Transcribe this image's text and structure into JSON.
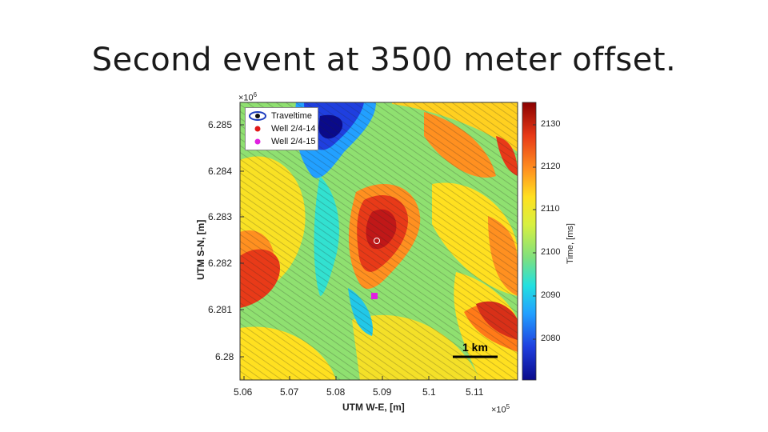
{
  "slide": {
    "title": "Second event at 3500 meter offset."
  },
  "map": {
    "x_axis": {
      "label": "UTM W-E, [m]",
      "ticks": [
        "5.06",
        "5.07",
        "5.08",
        "5.09",
        "5.1",
        "5.11"
      ],
      "exponent_base": "×10",
      "exponent_power": "5"
    },
    "y_axis": {
      "label": "UTM S-N, [m]",
      "ticks": [
        "6.285",
        "6.284",
        "6.283",
        "6.282",
        "6.281",
        "6.28"
      ],
      "exponent_base": "×10",
      "exponent_power": "6"
    },
    "legend": {
      "items": [
        {
          "label": "Traveltime",
          "color": "#1f3fbf",
          "icon": "eye-icon"
        },
        {
          "label": "Well 2/4-14",
          "color": "#e01818",
          "icon": "dot-icon"
        },
        {
          "label": "Well 2/4-15",
          "color": "#e020e0",
          "icon": "dot-icon"
        }
      ]
    },
    "scalebar": {
      "label": "1 km"
    },
    "colorbar": {
      "label": "Time, [ms]",
      "ticks": [
        "2130",
        "2120",
        "2110",
        "2100",
        "2090",
        "2080"
      ],
      "colors": [
        "#0a0a8a",
        "#1f3fdf",
        "#22a0ff",
        "#22e0e0",
        "#7ee07e",
        "#d8f040",
        "#ffe020",
        "#ff9020",
        "#e83a18",
        "#8a0000"
      ]
    },
    "wells": {
      "well_2_4_14": {
        "color": "#e01818"
      },
      "well_2_4_15": {
        "color": "#e020e0"
      }
    }
  }
}
